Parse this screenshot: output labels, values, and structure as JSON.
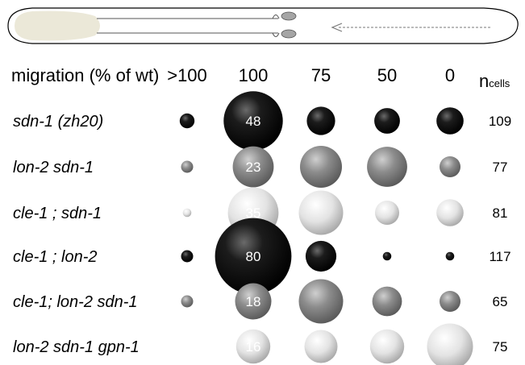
{
  "chart_data": {
    "type": "bubble",
    "header_label": "migration (% of wt)",
    "columns": [
      ">100",
      "100",
      "75",
      "50",
      "0"
    ],
    "count_header": {
      "main": "n",
      "sub": "cells"
    },
    "rows": [
      {
        "genotype": "sdn-1 (zh20)",
        "shade": "black",
        "n_cells": "109",
        "values": [
          3,
          48,
          11,
          9,
          10
        ],
        "labeled_value": "48"
      },
      {
        "genotype": "lon-2 sdn-1",
        "shade": "gray",
        "n_cells": "77",
        "values": [
          2,
          23,
          24,
          22,
          6
        ],
        "labeled_value": "23"
      },
      {
        "genotype": "cle-1 ; sdn-1",
        "shade": "light",
        "n_cells": "81",
        "values": [
          1,
          35,
          27,
          8,
          10
        ],
        "labeled_value": "35"
      },
      {
        "genotype": "cle-1 ; lon-2",
        "shade": "black",
        "n_cells": "117",
        "values": [
          2,
          80,
          13,
          1,
          1
        ],
        "labeled_value": "80"
      },
      {
        "genotype": "cle-1; lon-2 sdn-1",
        "shade": "gray",
        "n_cells": "65",
        "values": [
          2,
          18,
          27,
          12,
          6
        ],
        "labeled_value": "18"
      },
      {
        "genotype": "lon-2 sdn-1 gpn-1",
        "shade": "light",
        "n_cells": "75",
        "values": [
          0,
          16,
          15,
          16,
          29
        ],
        "labeled_value": "16"
      }
    ]
  },
  "colors": {
    "black": "#000000",
    "gray": "#8a8a8a",
    "light": "#e6e6e6"
  }
}
